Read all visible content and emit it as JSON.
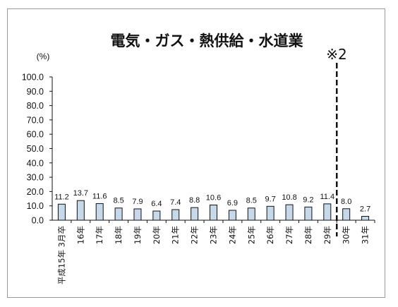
{
  "chart_data": {
    "type": "bar",
    "title": "電気・ガス・熱供給・水道業",
    "ylabel": "(%)",
    "xlabel": "",
    "ylim": [
      0,
      100
    ],
    "yticks": [
      "100.0",
      "90.0",
      "80.0",
      "70.0",
      "60.0",
      "50.0",
      "40.0",
      "30.0",
      "20.0",
      "10.0",
      "0.0"
    ],
    "categories": [
      "平成15年 3月卒",
      "16年",
      "17年",
      "18年",
      "19年",
      "20年",
      "21年",
      "22年",
      "23年",
      "24年",
      "25年",
      "26年",
      "27年",
      "28年",
      "29年",
      "30年",
      "31年"
    ],
    "values": [
      11.2,
      13.7,
      11.6,
      8.5,
      7.9,
      6.4,
      7.4,
      8.8,
      10.6,
      6.9,
      8.5,
      9.7,
      10.8,
      9.2,
      11.4,
      8.0,
      2.7
    ],
    "value_labels": [
      "11.2",
      "13.7",
      "11.6",
      "8.5",
      "7.9",
      "6.4",
      "7.4",
      "8.8",
      "10.6",
      "6.9",
      "8.5",
      "9.7",
      "10.8",
      "9.2",
      "11.4",
      "8.0",
      "2.7"
    ],
    "annotation": "※2",
    "grid": false,
    "bar_color": "#c5d9ea",
    "bar_border_color": "#111111",
    "divider_style": "dashed"
  }
}
